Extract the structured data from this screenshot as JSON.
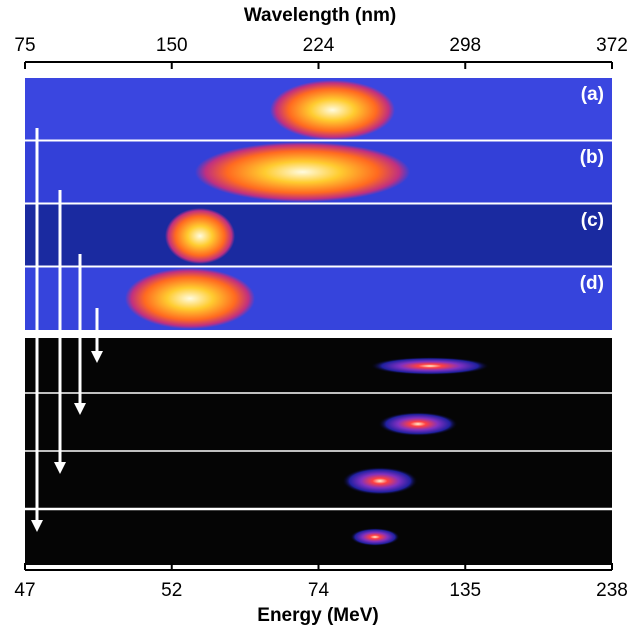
{
  "top_axis": {
    "title": "Wavelength (nm)",
    "ticks": [
      "75",
      "150",
      "224",
      "298",
      "372"
    ]
  },
  "bottom_axis": {
    "title": "Energy (MeV)",
    "ticks": [
      "47",
      "52",
      "74",
      "135",
      "238"
    ]
  },
  "panel_labels": [
    "(a)",
    "(b)",
    "(c)",
    "(d)"
  ]
}
